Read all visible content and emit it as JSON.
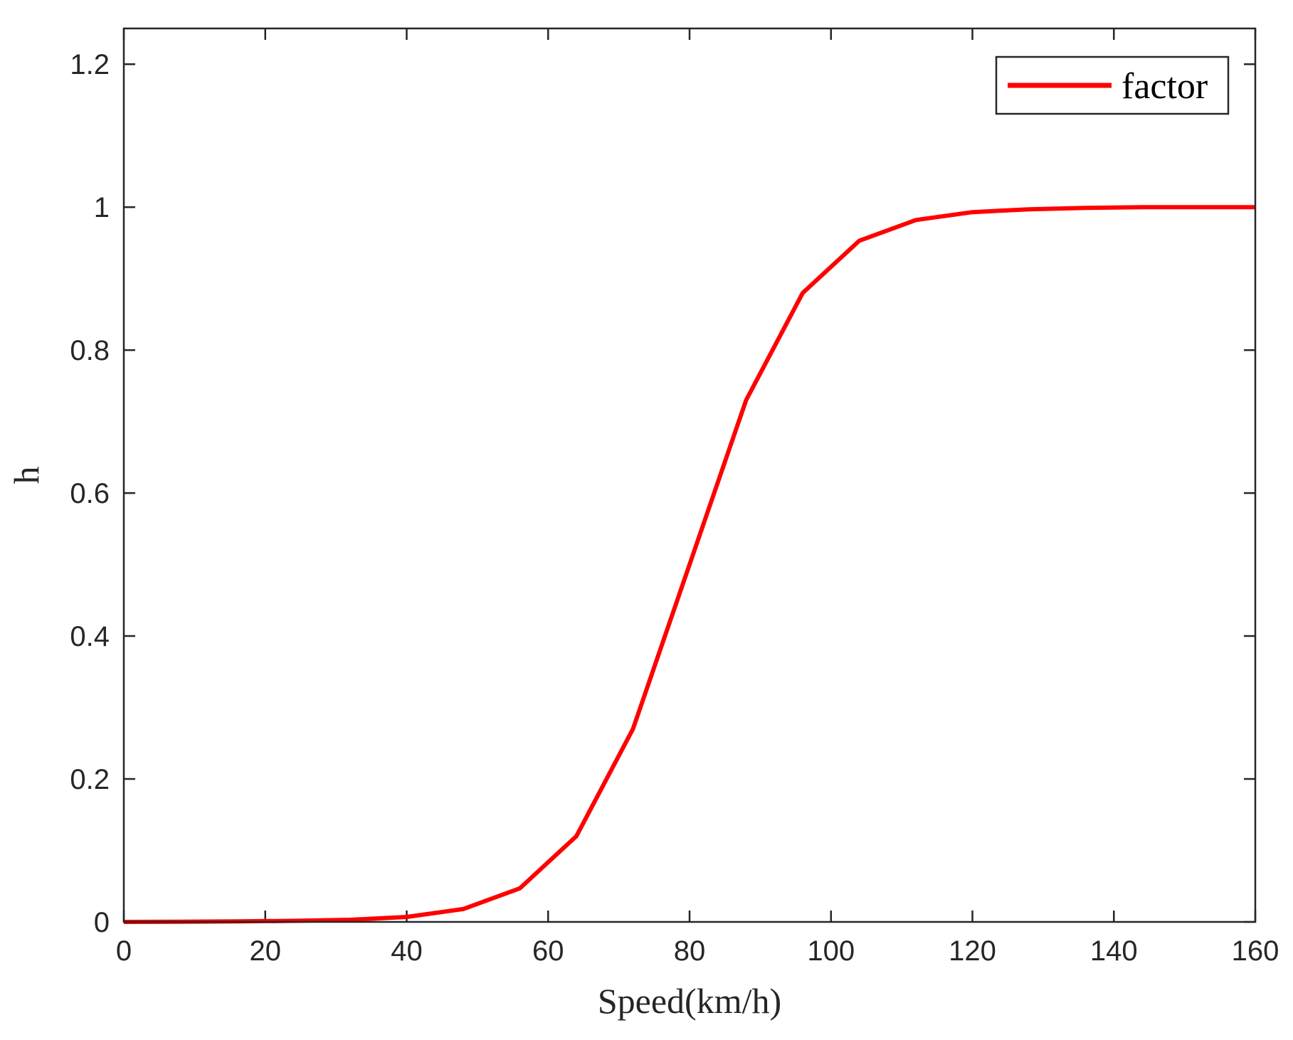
{
  "chart_data": {
    "type": "line",
    "xlabel": "Speed(km/h)",
    "ylabel": "h",
    "xlim": [
      0,
      160
    ],
    "ylim": [
      0,
      1.25
    ],
    "xticks": [
      0,
      20,
      40,
      60,
      80,
      100,
      120,
      140,
      160
    ],
    "xtick_labels": [
      "0",
      "20",
      "40",
      "60",
      "80",
      "100",
      "120",
      "140",
      "160"
    ],
    "yticks": [
      0,
      0.2,
      0.4,
      0.6,
      0.8,
      1.0,
      1.2
    ],
    "ytick_labels": [
      "0",
      "0.2",
      "0.4",
      "0.6",
      "0.8",
      "1",
      "1.2"
    ],
    "grid": false,
    "legend_position": "top-right",
    "series": [
      {
        "name": "factor",
        "color": "#ff0000",
        "x": [
          0,
          8,
          16,
          24,
          32,
          40,
          48,
          56,
          64,
          72,
          80,
          88,
          96,
          104,
          112,
          120,
          128,
          136,
          144,
          152,
          160
        ],
        "y": [
          0,
          0.0003,
          0.0007,
          0.0015,
          0.003,
          0.007,
          0.018,
          0.047,
          0.12,
          0.27,
          0.5,
          0.73,
          0.88,
          0.953,
          0.982,
          0.993,
          0.997,
          0.999,
          1.0,
          1.0,
          1.0
        ]
      }
    ]
  }
}
